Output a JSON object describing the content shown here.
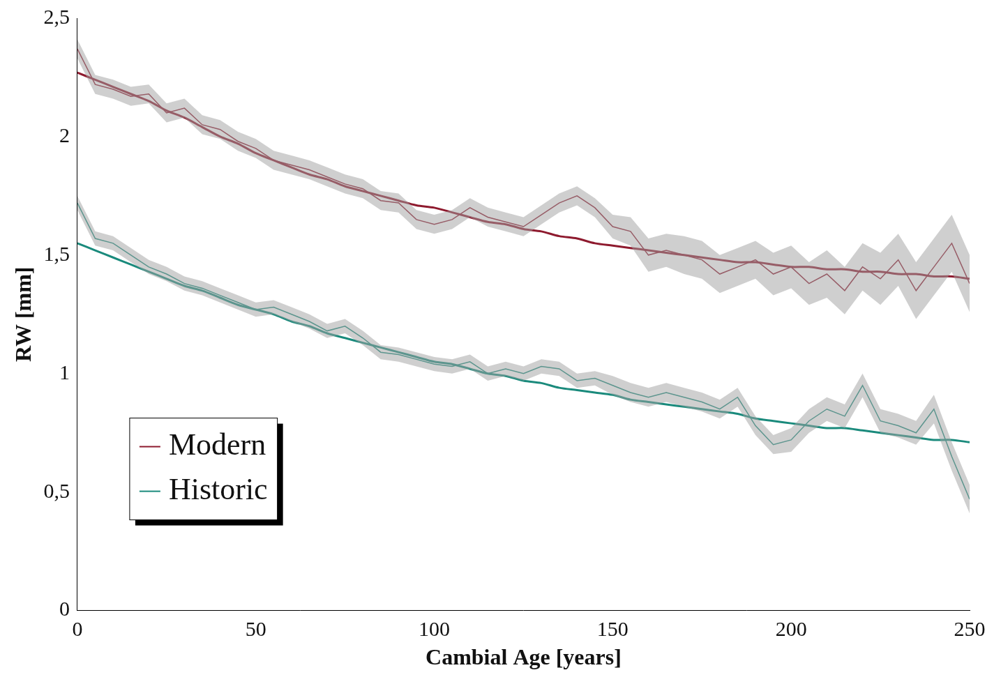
{
  "chart_data": {
    "type": "line",
    "x_label": "Cambial Age [years]",
    "y_label": "RW [mm]",
    "x": [
      0,
      5,
      10,
      15,
      20,
      25,
      30,
      35,
      40,
      45,
      50,
      55,
      60,
      65,
      70,
      75,
      80,
      85,
      90,
      95,
      100,
      105,
      110,
      115,
      120,
      125,
      130,
      135,
      140,
      145,
      150,
      155,
      160,
      165,
      170,
      175,
      180,
      185,
      190,
      195,
      200,
      205,
      210,
      215,
      220,
      225,
      230,
      235,
      240,
      245,
      250
    ],
    "series": [
      {
        "name": "Modern",
        "color": "#8e1a2e",
        "values": [
          2.37,
          2.22,
          2.2,
          2.17,
          2.18,
          2.1,
          2.12,
          2.05,
          2.03,
          1.98,
          1.95,
          1.9,
          1.88,
          1.86,
          1.83,
          1.8,
          1.78,
          1.73,
          1.72,
          1.65,
          1.63,
          1.65,
          1.7,
          1.66,
          1.64,
          1.62,
          1.67,
          1.72,
          1.75,
          1.7,
          1.62,
          1.6,
          1.5,
          1.52,
          1.5,
          1.48,
          1.42,
          1.45,
          1.48,
          1.42,
          1.45,
          1.38,
          1.42,
          1.35,
          1.45,
          1.4,
          1.48,
          1.35,
          1.45,
          1.55,
          1.38
        ],
        "fit": [
          2.27,
          2.24,
          2.21,
          2.18,
          2.15,
          2.11,
          2.08,
          2.04,
          2.0,
          1.97,
          1.93,
          1.9,
          1.87,
          1.84,
          1.82,
          1.79,
          1.77,
          1.75,
          1.73,
          1.71,
          1.7,
          1.68,
          1.66,
          1.64,
          1.63,
          1.61,
          1.6,
          1.58,
          1.57,
          1.55,
          1.54,
          1.53,
          1.52,
          1.51,
          1.5,
          1.49,
          1.48,
          1.47,
          1.47,
          1.46,
          1.45,
          1.45,
          1.44,
          1.44,
          1.43,
          1.43,
          1.42,
          1.42,
          1.41,
          1.41,
          1.4
        ],
        "error": [
          0.04,
          0.04,
          0.04,
          0.04,
          0.04,
          0.04,
          0.04,
          0.04,
          0.04,
          0.04,
          0.04,
          0.04,
          0.04,
          0.04,
          0.04,
          0.04,
          0.04,
          0.04,
          0.04,
          0.04,
          0.04,
          0.04,
          0.04,
          0.04,
          0.04,
          0.04,
          0.04,
          0.04,
          0.04,
          0.04,
          0.05,
          0.06,
          0.07,
          0.07,
          0.08,
          0.08,
          0.08,
          0.08,
          0.08,
          0.09,
          0.09,
          0.09,
          0.1,
          0.1,
          0.1,
          0.11,
          0.11,
          0.12,
          0.12,
          0.12,
          0.12
        ]
      },
      {
        "name": "Historic",
        "color": "#1a8a7c",
        "values": [
          1.72,
          1.57,
          1.55,
          1.5,
          1.45,
          1.42,
          1.38,
          1.36,
          1.33,
          1.3,
          1.27,
          1.28,
          1.25,
          1.22,
          1.18,
          1.2,
          1.15,
          1.09,
          1.08,
          1.06,
          1.04,
          1.03,
          1.05,
          1.0,
          1.02,
          1.0,
          1.03,
          1.02,
          0.97,
          0.98,
          0.95,
          0.92,
          0.9,
          0.92,
          0.9,
          0.88,
          0.85,
          0.9,
          0.78,
          0.7,
          0.72,
          0.8,
          0.85,
          0.82,
          0.95,
          0.8,
          0.78,
          0.75,
          0.85,
          0.65,
          0.47
        ],
        "fit": [
          1.55,
          1.52,
          1.49,
          1.46,
          1.43,
          1.4,
          1.37,
          1.35,
          1.32,
          1.29,
          1.27,
          1.25,
          1.22,
          1.2,
          1.17,
          1.15,
          1.13,
          1.11,
          1.09,
          1.07,
          1.05,
          1.04,
          1.02,
          1.0,
          0.99,
          0.97,
          0.96,
          0.94,
          0.93,
          0.92,
          0.91,
          0.89,
          0.88,
          0.87,
          0.86,
          0.85,
          0.84,
          0.83,
          0.81,
          0.8,
          0.79,
          0.78,
          0.77,
          0.77,
          0.76,
          0.75,
          0.74,
          0.73,
          0.72,
          0.72,
          0.71
        ],
        "error": [
          0.03,
          0.03,
          0.03,
          0.03,
          0.03,
          0.03,
          0.03,
          0.03,
          0.03,
          0.03,
          0.03,
          0.03,
          0.03,
          0.03,
          0.03,
          0.03,
          0.03,
          0.03,
          0.03,
          0.03,
          0.03,
          0.03,
          0.03,
          0.03,
          0.03,
          0.03,
          0.03,
          0.03,
          0.03,
          0.03,
          0.04,
          0.04,
          0.04,
          0.04,
          0.04,
          0.04,
          0.04,
          0.04,
          0.04,
          0.04,
          0.05,
          0.05,
          0.05,
          0.05,
          0.05,
          0.05,
          0.05,
          0.05,
          0.06,
          0.06,
          0.06
        ]
      }
    ],
    "xlim": [
      0,
      250
    ],
    "xticks": [
      0,
      50,
      100,
      150,
      200,
      250
    ],
    "ylim": [
      0,
      2.5
    ],
    "yticks": [
      0,
      {
        "value": 0.5,
        "label": "0,5"
      },
      1,
      {
        "value": 1.5,
        "label": "1,5"
      },
      2,
      {
        "value": 2.5,
        "label": "2,5"
      }
    ],
    "grid": false,
    "legend": "lower left"
  }
}
